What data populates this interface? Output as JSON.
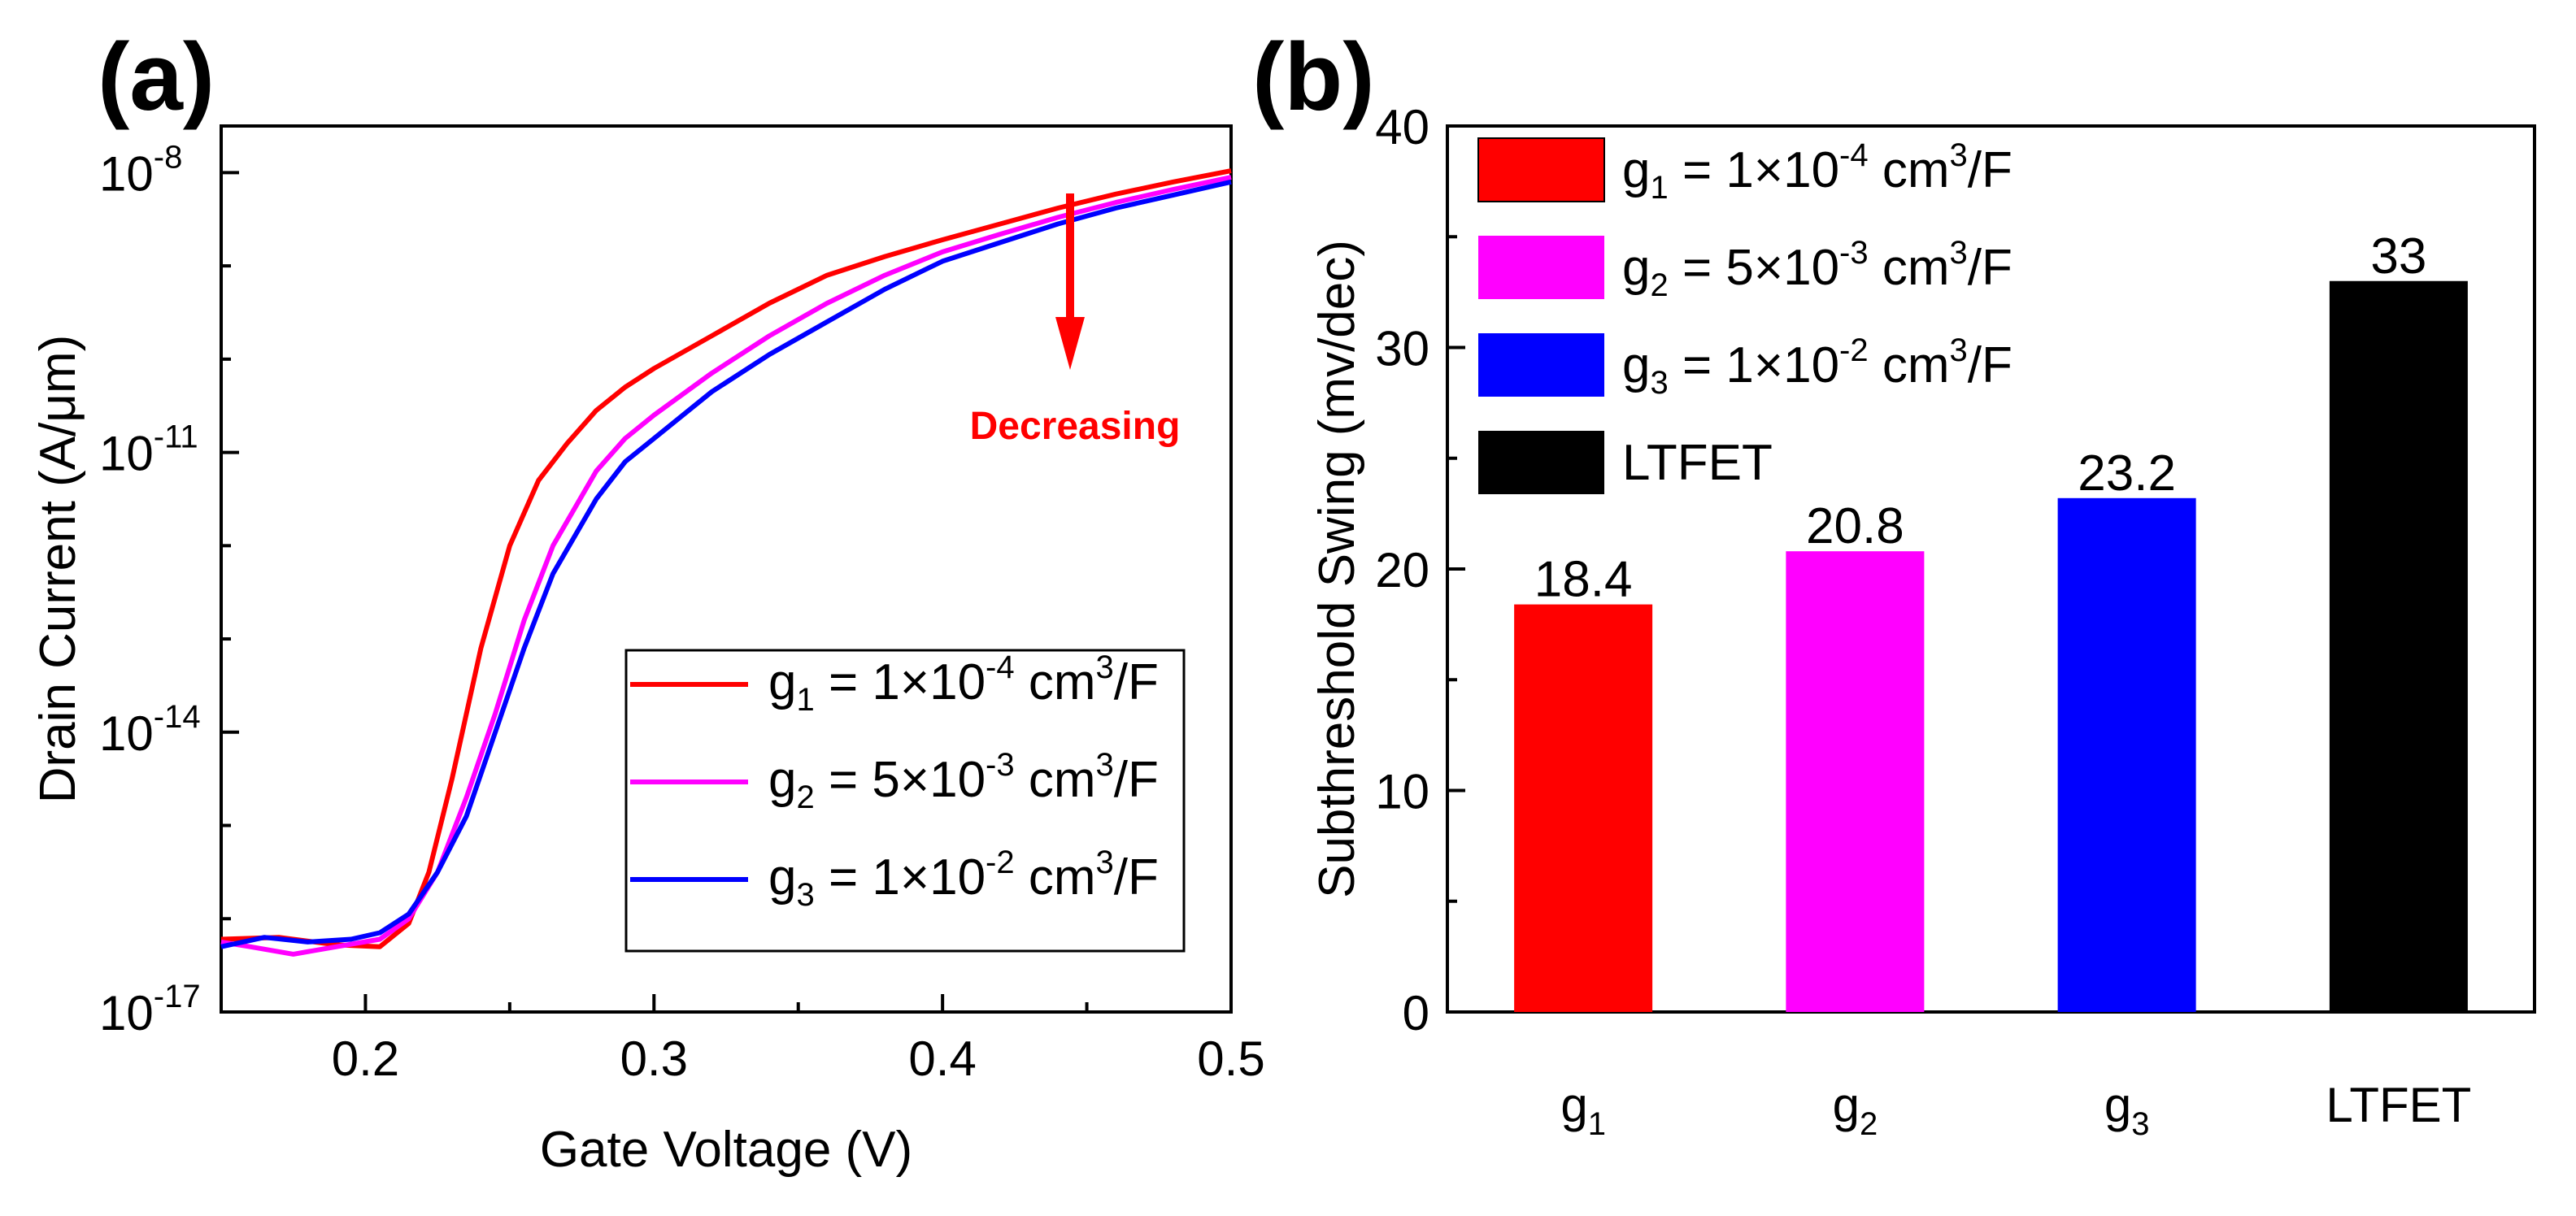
{
  "chart_data": [
    {
      "panel": "(a)",
      "type": "line",
      "xlabel": "Gate Voltage (V)",
      "ylabel": "Drain Current (A/μm)",
      "yscale": "log",
      "xlim": [
        0.15,
        0.5
      ],
      "ylim_exp": [
        -17,
        -7.5
      ],
      "xticks": [
        {
          "v": 0.2,
          "label": "0.2"
        },
        {
          "v": 0.3,
          "label": "0.3"
        },
        {
          "v": 0.4,
          "label": "0.4"
        },
        {
          "v": 0.5,
          "label": "0.5"
        }
      ],
      "yticks": [
        {
          "exp": -8,
          "base": "10",
          "sup": "-8"
        },
        {
          "exp": -11,
          "base": "10",
          "sup": "-11"
        },
        {
          "exp": -14,
          "base": "10",
          "sup": "-14"
        },
        {
          "exp": -17,
          "base": "10",
          "sup": "-17"
        }
      ],
      "annotation": "Decreasing",
      "series": [
        {
          "name": "g1",
          "color": "#ff0000",
          "legend": {
            "g": "g",
            "sub": "1",
            "mid": " = 1×10",
            "sup": "-4",
            "unit": " cm",
            "unit_sup": "3",
            "tail": "/F"
          },
          "points": [
            [
              0.15,
              -16.22
            ],
            [
              0.17,
              -16.2
            ],
            [
              0.19,
              -16.28
            ],
            [
              0.205,
              -16.3
            ],
            [
              0.215,
              -16.05
            ],
            [
              0.222,
              -15.5
            ],
            [
              0.23,
              -14.5
            ],
            [
              0.24,
              -13.1
            ],
            [
              0.25,
              -12.0
            ],
            [
              0.26,
              -11.3
            ],
            [
              0.27,
              -10.9
            ],
            [
              0.28,
              -10.55
            ],
            [
              0.29,
              -10.3
            ],
            [
              0.3,
              -10.1
            ],
            [
              0.32,
              -9.75
            ],
            [
              0.34,
              -9.4
            ],
            [
              0.36,
              -9.1
            ],
            [
              0.38,
              -8.9
            ],
            [
              0.4,
              -8.72
            ],
            [
              0.42,
              -8.55
            ],
            [
              0.44,
              -8.38
            ],
            [
              0.46,
              -8.23
            ],
            [
              0.48,
              -8.1
            ],
            [
              0.5,
              -7.98
            ]
          ]
        },
        {
          "name": "g2",
          "color": "#ff00ff",
          "legend": {
            "g": "g",
            "sub": "2",
            "mid": " = 5×10",
            "sup": "-3",
            "unit": " cm",
            "unit_sup": "3",
            "tail": "/F"
          },
          "points": [
            [
              0.15,
              -16.25
            ],
            [
              0.16,
              -16.3
            ],
            [
              0.175,
              -16.38
            ],
            [
              0.19,
              -16.3
            ],
            [
              0.205,
              -16.22
            ],
            [
              0.215,
              -16.0
            ],
            [
              0.225,
              -15.5
            ],
            [
              0.235,
              -14.7
            ],
            [
              0.245,
              -13.8
            ],
            [
              0.255,
              -12.8
            ],
            [
              0.265,
              -12.0
            ],
            [
              0.28,
              -11.2
            ],
            [
              0.29,
              -10.85
            ],
            [
              0.3,
              -10.6
            ],
            [
              0.32,
              -10.15
            ],
            [
              0.34,
              -9.75
            ],
            [
              0.36,
              -9.4
            ],
            [
              0.38,
              -9.1
            ],
            [
              0.4,
              -8.85
            ],
            [
              0.42,
              -8.66
            ],
            [
              0.44,
              -8.48
            ],
            [
              0.46,
              -8.32
            ],
            [
              0.48,
              -8.18
            ],
            [
              0.5,
              -8.05
            ]
          ]
        },
        {
          "name": "g3",
          "color": "#0000ff",
          "legend": {
            "g": "g",
            "sub": "3",
            "mid": " = 1×10",
            "sup": "-2",
            "unit": " cm",
            "unit_sup": "3",
            "tail": "/F"
          },
          "points": [
            [
              0.15,
              -16.3
            ],
            [
              0.165,
              -16.2
            ],
            [
              0.18,
              -16.25
            ],
            [
              0.195,
              -16.22
            ],
            [
              0.205,
              -16.15
            ],
            [
              0.215,
              -15.95
            ],
            [
              0.225,
              -15.5
            ],
            [
              0.235,
              -14.9
            ],
            [
              0.245,
              -14.0
            ],
            [
              0.255,
              -13.1
            ],
            [
              0.265,
              -12.3
            ],
            [
              0.28,
              -11.5
            ],
            [
              0.29,
              -11.1
            ],
            [
              0.3,
              -10.85
            ],
            [
              0.32,
              -10.35
            ],
            [
              0.34,
              -9.95
            ],
            [
              0.36,
              -9.6
            ],
            [
              0.38,
              -9.25
            ],
            [
              0.4,
              -8.95
            ],
            [
              0.42,
              -8.75
            ],
            [
              0.44,
              -8.55
            ],
            [
              0.46,
              -8.38
            ],
            [
              0.48,
              -8.24
            ],
            [
              0.5,
              -8.1
            ]
          ]
        }
      ]
    },
    {
      "panel": "(b)",
      "type": "bar",
      "ylabel": "Subthreshold Swing (mv/dec)",
      "ylim": [
        0,
        40
      ],
      "yticks": [
        0,
        10,
        20,
        30,
        40
      ],
      "categories": [
        {
          "base": "g",
          "sub": "1"
        },
        {
          "base": "g",
          "sub": "2"
        },
        {
          "base": "g",
          "sub": "3"
        },
        {
          "base": "LTFET",
          "sub": ""
        }
      ],
      "values": [
        18.4,
        20.8,
        23.2,
        33
      ],
      "value_labels": [
        "18.4",
        "20.8",
        "23.2",
        "33"
      ],
      "colors": [
        "#ff0000",
        "#ff00ff",
        "#0000ff",
        "#000000"
      ],
      "legend": [
        {
          "g": "g",
          "sub": "1",
          "mid": " = 1×10",
          "sup": "-4",
          "unit": " cm",
          "unit_sup": "3",
          "tail": "/F"
        },
        {
          "g": "g",
          "sub": "2",
          "mid": " = 5×10",
          "sup": "-3",
          "unit": " cm",
          "unit_sup": "3",
          "tail": "/F"
        },
        {
          "g": "g",
          "sub": "3",
          "mid": " = 1×10",
          "sup": "-2",
          "unit": " cm",
          "unit_sup": "3",
          "tail": "/F"
        },
        {
          "g": "LTFET",
          "sub": "",
          "mid": "",
          "sup": "",
          "unit": "",
          "unit_sup": "",
          "tail": ""
        }
      ]
    }
  ]
}
